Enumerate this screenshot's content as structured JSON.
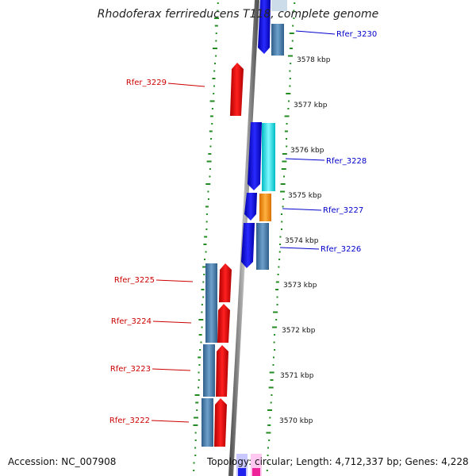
{
  "title": "Rhodoferax ferrireducens T118, complete genome",
  "footer": {
    "accession": "Accession: NC_007908",
    "stats": "Topology: circular; Length: 4,712,337 bp; Genes: 4,228"
  },
  "colors": {
    "forward_gene": "#0000ee",
    "reverse_gene": "#ee0000",
    "cds_steel": "#4682b4",
    "cds_cyan": "#00e5ee",
    "cds_orange": "#ff8c00",
    "backbone": "#777777",
    "gc_ticks": "#228b22",
    "label_forward": "#0000cc",
    "label_reverse": "#cc0000"
  },
  "scale_labels": [
    "3578 kbp",
    "3577 kbp",
    "3576 kbp",
    "3575 kbp",
    "3574 kbp",
    "3573 kbp",
    "3572 kbp",
    "3571 kbp",
    "3570 kbp"
  ],
  "gene_labels": {
    "forward": [
      "Rfer_3230",
      "Rfer_3228",
      "Rfer_3227",
      "Rfer_3226"
    ],
    "reverse": [
      "Rfer_3229",
      "Rfer_3225",
      "Rfer_3224",
      "Rfer_3223",
      "Rfer_3222"
    ]
  }
}
